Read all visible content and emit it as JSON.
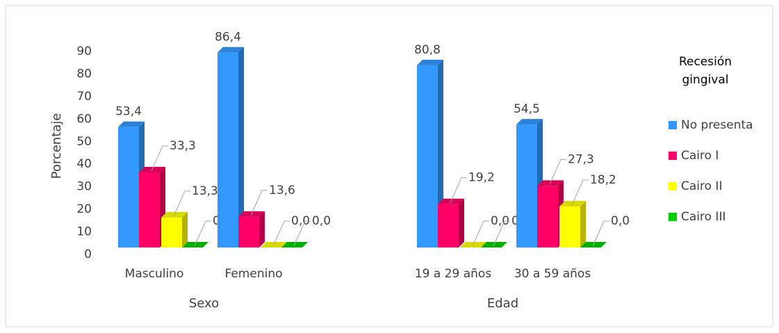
{
  "chart_data": {
    "type": "bar3d",
    "y_label": "Porcentaje",
    "categories": [
      "Masculino",
      "Femenino",
      "19 a 29 años",
      "30 a 59 años"
    ],
    "groups": [
      "Sexo",
      "Edad"
    ],
    "legend_title": "Recesión gingival",
    "ylim": [
      0,
      90
    ],
    "yticks": [
      0,
      10,
      20,
      30,
      40,
      50,
      60,
      70,
      80,
      90
    ],
    "series": [
      {
        "name": "No presenta",
        "color": "#3399ff",
        "values": [
          53.4,
          86.4,
          80.8,
          54.5
        ],
        "value_labels": [
          "53,4",
          "86,4",
          "80,8",
          "54,5"
        ]
      },
      {
        "name": "Cairo I",
        "color": "#ff0066",
        "values": [
          33.3,
          13.6,
          19.2,
          27.3
        ],
        "value_labels": [
          "33,3",
          "13,6",
          "19,2",
          "27,3"
        ]
      },
      {
        "name": "Cairo II",
        "color": "#ffff00",
        "values": [
          13.3,
          0,
          0,
          18.2
        ],
        "value_labels": [
          "13,3",
          "0,0",
          "0,0",
          "18,2"
        ]
      },
      {
        "name": "Cairo III",
        "color": "#00cc00",
        "values": [
          0,
          0,
          0,
          0
        ],
        "value_labels": [
          "0,0",
          "0,0",
          "0,0",
          "0,0"
        ]
      }
    ]
  }
}
